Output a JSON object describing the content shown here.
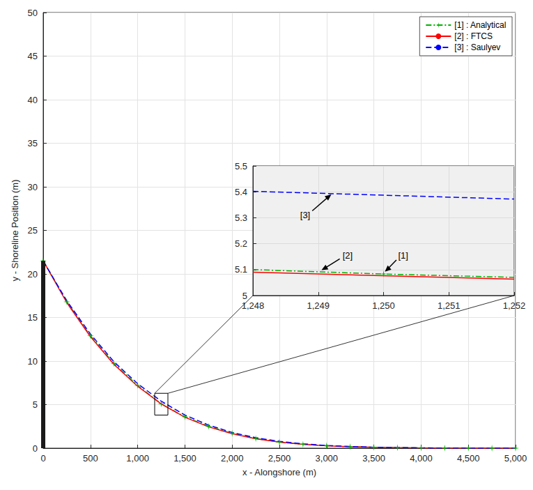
{
  "chart_data": {
    "type": "line",
    "xlabel": "x - Alongshore (m)",
    "ylabel": "y - Shoreline Position (m)",
    "x": [
      0,
      250,
      500,
      750,
      1000,
      1250,
      1500,
      1750,
      2000,
      2250,
      2500,
      2750,
      3000,
      3250,
      3500,
      3750,
      4000,
      4250,
      4500,
      4750,
      5000
    ],
    "series": [
      {
        "name": "[1] : Analytical",
        "color": "#00b000",
        "line_style": "dashdot",
        "marker": "star",
        "values": [
          21.5,
          16.8,
          12.9,
          9.7,
          7.2,
          5.08,
          3.6,
          2.5,
          1.7,
          1.1,
          0.7,
          0.45,
          0.28,
          0.17,
          0.1,
          0.06,
          0.03,
          0.02,
          0.01,
          0,
          0
        ]
      },
      {
        "name": "[2] : FTCS",
        "color": "#ff0000",
        "line_style": "solid",
        "marker": "none",
        "values": [
          21.5,
          16.7,
          12.8,
          9.6,
          7.1,
          5.07,
          3.55,
          2.45,
          1.65,
          1.08,
          0.7,
          0.44,
          0.27,
          0.16,
          0.1,
          0.06,
          0.03,
          0.02,
          0.01,
          0,
          0
        ]
      },
      {
        "name": "[3] : Saulyev",
        "color": "#0000ff",
        "line_style": "dashed",
        "marker": "none",
        "values": [
          21.5,
          16.9,
          13.1,
          9.9,
          7.4,
          5.39,
          3.8,
          2.65,
          1.8,
          1.2,
          0.78,
          0.5,
          0.31,
          0.19,
          0.11,
          0.07,
          0.04,
          0.02,
          0.01,
          0,
          0
        ]
      }
    ],
    "xlim": [
      0,
      5000
    ],
    "ylim": [
      0,
      50
    ],
    "xticks": [
      0,
      500,
      1000,
      1500,
      2000,
      2500,
      3000,
      3500,
      4000,
      4500,
      5000
    ],
    "yticks": [
      0,
      5,
      10,
      15,
      20,
      25,
      30,
      35,
      40,
      45,
      50
    ],
    "grid": true,
    "legend": "upper right",
    "structure": {
      "x": 0,
      "y": [
        0,
        21.5
      ]
    },
    "zoom_box": {
      "xlim": [
        1180,
        1320
      ],
      "ylim": [
        3.8,
        6.3
      ]
    },
    "inset": {
      "xlim": [
        1248,
        1252
      ],
      "ylim": [
        5,
        5.5
      ],
      "xticks": [
        1248,
        1249,
        1250,
        1251,
        1252
      ],
      "yticks": [
        5,
        5.1,
        5.2,
        5.3,
        5.4,
        5.5
      ],
      "grid": true,
      "series": [
        {
          "x": [
            1248,
            1250,
            1252
          ],
          "values": [
            5.1,
            5.083,
            5.07
          ]
        },
        {
          "x": [
            1248,
            1252
          ],
          "values": [
            5.09,
            5.063
          ]
        },
        {
          "x": [
            1248,
            1252
          ],
          "values": [
            5.402,
            5.372
          ]
        }
      ],
      "annotations": [
        {
          "text": "[1]",
          "x": 1250.3,
          "y": 5.155,
          "arrow_to": [
            1250.02,
            5.092
          ]
        },
        {
          "text": "[2]",
          "x": 1249.45,
          "y": 5.155,
          "arrow_to": [
            1249.05,
            5.098
          ]
        },
        {
          "text": "[3]",
          "x": 1248.8,
          "y": 5.31,
          "arrow_to": [
            1249.2,
            5.39
          ]
        }
      ]
    }
  }
}
